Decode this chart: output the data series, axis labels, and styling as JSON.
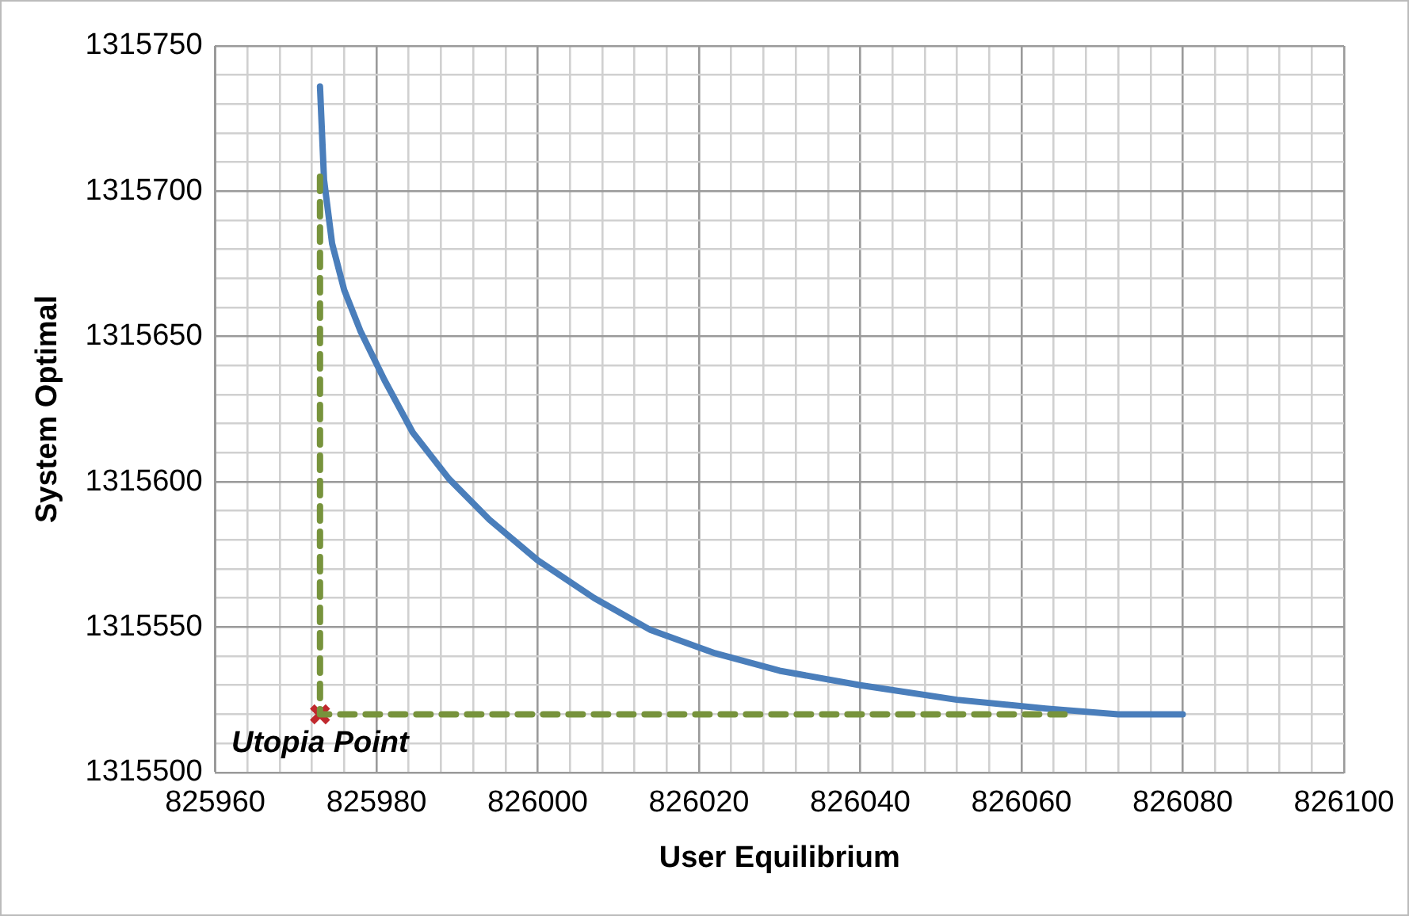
{
  "chart_data": {
    "type": "line",
    "xlabel": "User Equilibrium",
    "ylabel": "System Optimal",
    "grid": true,
    "legend": false,
    "xlim": [
      825960,
      826100
    ],
    "ylim": [
      1315500,
      1315750
    ],
    "xticks": [
      825960,
      {
        "value": 825964,
        "label": null
      },
      {
        "value": 825968,
        "label": null
      },
      {
        "value": 825972,
        "label": null
      },
      {
        "value": 825976,
        "label": null
      },
      825980,
      {
        "value": 825984,
        "label": null
      },
      {
        "value": 825988,
        "label": null
      },
      {
        "value": 825992,
        "label": null
      },
      {
        "value": 825996,
        "label": null
      },
      826000,
      {
        "value": 826004,
        "label": null
      },
      {
        "value": 826008,
        "label": null
      },
      {
        "value": 826012,
        "label": null
      },
      {
        "value": 826016,
        "label": null
      },
      826020,
      {
        "value": 826024,
        "label": null
      },
      {
        "value": 826028,
        "label": null
      },
      {
        "value": 826032,
        "label": null
      },
      {
        "value": 826036,
        "label": null
      },
      826040,
      {
        "value": 826044,
        "label": null
      },
      {
        "value": 826048,
        "label": null
      },
      {
        "value": 826052,
        "label": null
      },
      {
        "value": 826056,
        "label": null
      },
      826060,
      {
        "value": 826064,
        "label": null
      },
      {
        "value": 826068,
        "label": null
      },
      {
        "value": 826072,
        "label": null
      },
      {
        "value": 826076,
        "label": null
      },
      826080,
      {
        "value": 826084,
        "label": null
      },
      {
        "value": 826088,
        "label": null
      },
      {
        "value": 826092,
        "label": null
      },
      {
        "value": 826096,
        "label": null
      },
      826100
    ],
    "yticks": [
      1315500,
      {
        "value": 1315510,
        "label": null
      },
      {
        "value": 1315520,
        "label": null
      },
      {
        "value": 1315530,
        "label": null
      },
      {
        "value": 1315540,
        "label": null
      },
      1315550,
      {
        "value": 1315560,
        "label": null
      },
      {
        "value": 1315570,
        "label": null
      },
      {
        "value": 1315580,
        "label": null
      },
      {
        "value": 1315590,
        "label": null
      },
      1315600,
      {
        "value": 1315610,
        "label": null
      },
      {
        "value": 1315620,
        "label": null
      },
      {
        "value": 1315630,
        "label": null
      },
      {
        "value": 1315640,
        "label": null
      },
      1315650,
      {
        "value": 1315660,
        "label": null
      },
      {
        "value": 1315670,
        "label": null
      },
      {
        "value": 1315680,
        "label": null
      },
      {
        "value": 1315690,
        "label": null
      },
      1315700,
      {
        "value": 1315710,
        "label": null
      },
      {
        "value": 1315720,
        "label": null
      },
      {
        "value": 1315730,
        "label": null
      },
      {
        "value": 1315740,
        "label": null
      },
      1315750
    ],
    "series": [
      {
        "color": "#77933c",
        "line_style": "dashed",
        "marker": "none",
        "x": [
          825973,
          825973,
          826066
        ],
        "values": [
          1315705,
          1315520,
          1315520
        ]
      },
      {
        "color": "#4a7ebb",
        "line_style": "solid",
        "marker": "none",
        "x": [
          825973,
          825973.5,
          825974.5,
          825976,
          825978,
          825981,
          825984.5,
          825989,
          825994,
          826000,
          826007,
          826014,
          826022,
          826030,
          826040,
          826052,
          826063,
          826072,
          826080
        ],
        "values": [
          1315736,
          1315704,
          1315682,
          1315666,
          1315652,
          1315635,
          1315617,
          1315601,
          1315587,
          1315573,
          1315560,
          1315549,
          1315541,
          1315535,
          1315530,
          1315525,
          1315522,
          1315520,
          1315520
        ]
      },
      {
        "type": "scatter",
        "color": "#c0282d",
        "marker": "cross",
        "x": [
          825973
        ],
        "values": [
          1315520
        ]
      }
    ],
    "annotations": [
      {
        "text": "Utopia Point",
        "x": 825973,
        "y": 1315520
      }
    ]
  }
}
